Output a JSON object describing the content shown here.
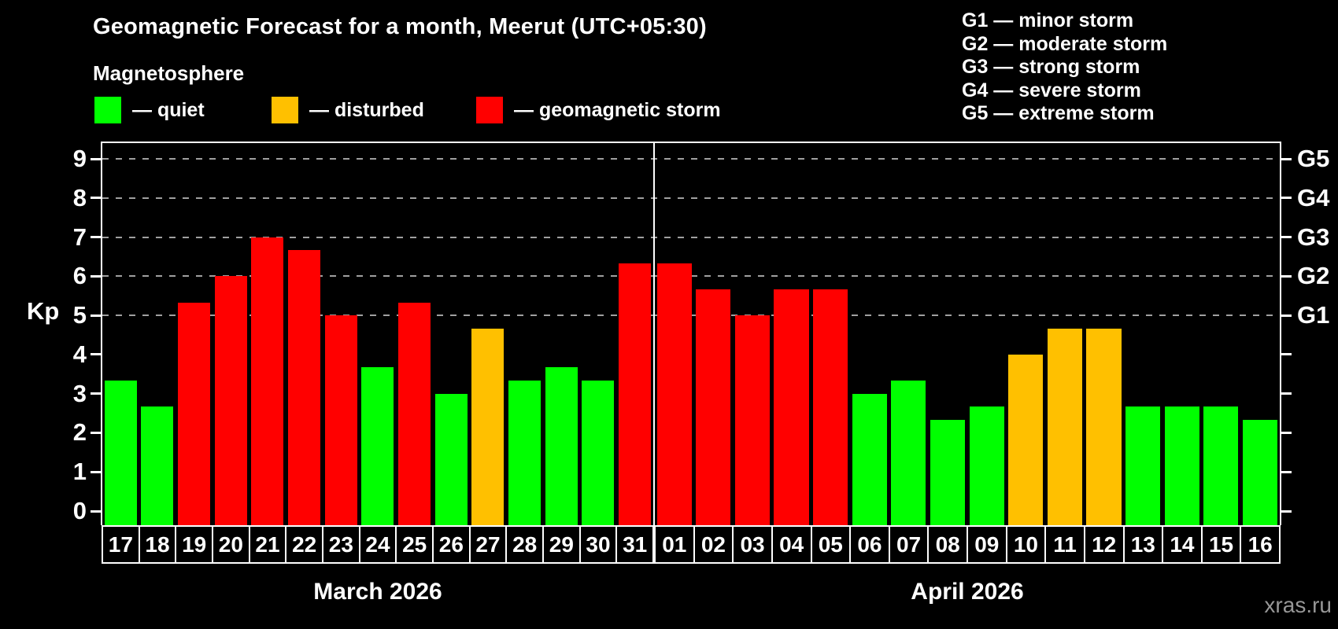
{
  "header": {
    "title": "Geomagnetic Forecast for a month, Meerut (UTC+05:30)",
    "subtitle": "Magnetosphere"
  },
  "legend": {
    "items": [
      {
        "status": "quiet",
        "label": "— quiet"
      },
      {
        "status": "disturbed",
        "label": "— disturbed"
      },
      {
        "status": "storm",
        "label": "— geomagnetic storm"
      }
    ]
  },
  "g_legend": {
    "items": [
      "G1 — minor storm",
      "G2 — moderate storm",
      "G3 — strong storm",
      "G4 — severe storm",
      "G5 — extreme storm"
    ]
  },
  "axis": {
    "y_label": "Kp",
    "y_ticks": [
      "0",
      "1",
      "2",
      "3",
      "4",
      "5",
      "6",
      "7",
      "8",
      "9"
    ],
    "right_ticks": [
      {
        "kp": 5,
        "label": "G1"
      },
      {
        "kp": 6,
        "label": "G2"
      },
      {
        "kp": 7,
        "label": "G3"
      },
      {
        "kp": 8,
        "label": "G4"
      },
      {
        "kp": 9,
        "label": "G5"
      }
    ]
  },
  "watermark": "xras.ru",
  "chart_data": {
    "type": "bar",
    "title": "Geomagnetic Forecast for a month, Meerut (UTC+05:30)",
    "ylabel": "Kp",
    "ylim": [
      0,
      9
    ],
    "grid": true,
    "gridlines_at_kp": [
      5,
      6,
      7,
      8,
      9
    ],
    "status_colors": {
      "quiet": "#00FF00",
      "disturbed": "#FFC000",
      "storm": "#FF0000"
    },
    "months": [
      {
        "label": "March 2026",
        "days": [
          {
            "day": "17",
            "kp": 3.33,
            "status": "quiet"
          },
          {
            "day": "18",
            "kp": 2.67,
            "status": "quiet"
          },
          {
            "day": "19",
            "kp": 5.33,
            "status": "storm"
          },
          {
            "day": "20",
            "kp": 6.0,
            "status": "storm"
          },
          {
            "day": "21",
            "kp": 7.0,
            "status": "storm"
          },
          {
            "day": "22",
            "kp": 6.67,
            "status": "storm"
          },
          {
            "day": "23",
            "kp": 5.0,
            "status": "storm"
          },
          {
            "day": "24",
            "kp": 3.67,
            "status": "quiet"
          },
          {
            "day": "25",
            "kp": 5.33,
            "status": "storm"
          },
          {
            "day": "26",
            "kp": 3.0,
            "status": "quiet"
          },
          {
            "day": "27",
            "kp": 4.67,
            "status": "disturbed"
          },
          {
            "day": "28",
            "kp": 3.33,
            "status": "quiet"
          },
          {
            "day": "29",
            "kp": 3.67,
            "status": "quiet"
          },
          {
            "day": "30",
            "kp": 3.33,
            "status": "quiet"
          },
          {
            "day": "31",
            "kp": 6.33,
            "status": "storm"
          }
        ]
      },
      {
        "label": "April 2026",
        "days": [
          {
            "day": "01",
            "kp": 6.33,
            "status": "storm"
          },
          {
            "day": "02",
            "kp": 5.67,
            "status": "storm"
          },
          {
            "day": "03",
            "kp": 5.0,
            "status": "storm"
          },
          {
            "day": "04",
            "kp": 5.67,
            "status": "storm"
          },
          {
            "day": "05",
            "kp": 5.67,
            "status": "storm"
          },
          {
            "day": "06",
            "kp": 3.0,
            "status": "quiet"
          },
          {
            "day": "07",
            "kp": 3.33,
            "status": "quiet"
          },
          {
            "day": "08",
            "kp": 2.33,
            "status": "quiet"
          },
          {
            "day": "09",
            "kp": 2.67,
            "status": "quiet"
          },
          {
            "day": "10",
            "kp": 4.0,
            "status": "disturbed"
          },
          {
            "day": "11",
            "kp": 4.67,
            "status": "disturbed"
          },
          {
            "day": "12",
            "kp": 4.67,
            "status": "disturbed"
          },
          {
            "day": "13",
            "kp": 2.67,
            "status": "quiet"
          },
          {
            "day": "14",
            "kp": 2.67,
            "status": "quiet"
          },
          {
            "day": "15",
            "kp": 2.67,
            "status": "quiet"
          },
          {
            "day": "16",
            "kp": 2.33,
            "status": "quiet"
          }
        ]
      }
    ]
  }
}
